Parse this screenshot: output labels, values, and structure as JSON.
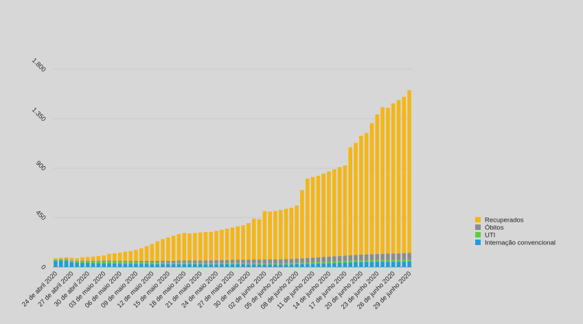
{
  "chart_data": {
    "type": "stacked-bar",
    "categories": [
      "24 de abril 2020",
      null,
      null,
      "27 de abril 2020",
      null,
      null,
      "30 de abril 2020",
      null,
      null,
      "03 de maio 2020",
      null,
      null,
      "06 de maio 2020",
      null,
      null,
      "09 de maio 2020",
      null,
      null,
      "12 de maio 2020",
      null,
      null,
      "15 de maio 2020",
      null,
      null,
      "18 de maio 2020",
      null,
      null,
      "21 de maio 2020",
      null,
      null,
      "24 de maio 2020",
      null,
      null,
      "27 de maio 2020",
      null,
      null,
      "30 de maio 2020",
      null,
      null,
      "02 de junho 2020",
      null,
      null,
      "05 de junho 2020",
      null,
      null,
      "08 de junho 2020",
      null,
      null,
      "11 de junho 2020",
      null,
      null,
      "14 de junho 2020",
      null,
      null,
      "17 de junho 2020",
      null,
      null,
      "20 de junho 2020",
      null,
      null,
      "23 de junho 2020",
      null,
      null,
      "26 de junho 2020",
      null,
      null,
      "29 de junho 2020"
    ],
    "series": [
      {
        "name": "Internação convencional",
        "color": "#1f9be2",
        "values": [
          55,
          60,
          58,
          45,
          40,
          40,
          38,
          36,
          35,
          35,
          35,
          33,
          32,
          30,
          30,
          30,
          28,
          28,
          27,
          26,
          25,
          25,
          25,
          26,
          27,
          26,
          25,
          25,
          24,
          24,
          24,
          25,
          25,
          26,
          26,
          25,
          24,
          24,
          23,
          22,
          22,
          22,
          22,
          23,
          24,
          25,
          26,
          28,
          30,
          32,
          33,
          35,
          36,
          38,
          40,
          42,
          44,
          45,
          46,
          46,
          47,
          47,
          48,
          48,
          48,
          49,
          50
        ]
      },
      {
        "name": "UTI",
        "color": "#5ccd3b",
        "values": [
          8,
          8,
          10,
          10,
          12,
          12,
          12,
          14,
          14,
          15,
          15,
          15,
          16,
          16,
          16,
          15,
          15,
          15,
          14,
          14,
          14,
          14,
          13,
          13,
          13,
          13,
          13,
          12,
          12,
          12,
          12,
          12,
          12,
          12,
          12,
          12,
          12,
          12,
          12,
          12,
          12,
          12,
          12,
          12,
          12,
          13,
          13,
          13,
          14,
          14,
          14,
          15,
          15,
          15,
          16,
          16,
          16,
          17,
          17,
          17,
          17,
          18,
          18,
          18,
          18,
          18,
          18
        ]
      },
      {
        "name": "Óbitos",
        "color": "#8c8c8c",
        "values": [
          5,
          5,
          6,
          6,
          6,
          7,
          7,
          8,
          8,
          9,
          9,
          10,
          10,
          11,
          12,
          12,
          13,
          14,
          15,
          16,
          17,
          18,
          19,
          20,
          21,
          22,
          22,
          23,
          24,
          25,
          26,
          27,
          27,
          28,
          29,
          30,
          31,
          32,
          33,
          34,
          35,
          35,
          36,
          37,
          38,
          39,
          40,
          41,
          42,
          43,
          44,
          45,
          46,
          47,
          48,
          49,
          50,
          51,
          52,
          53,
          54,
          55,
          56,
          57,
          58,
          59,
          60
        ]
      },
      {
        "name": "Recuperados",
        "color": "#f4b616",
        "values": [
          12,
          12,
          16,
          24,
          22,
          31,
          35,
          37,
          43,
          46,
          61,
          67,
          72,
          83,
          87,
          98,
          114,
          133,
          154,
          179,
          199,
          213,
          228,
          241,
          249,
          244,
          250,
          255,
          258,
          259,
          268,
          276,
          286,
          294,
          303,
          313,
          333,
          372,
          367,
          442,
          436,
          441,
          450,
          458,
          466,
          483,
          621,
          723,
          734,
          741,
          759,
          775,
          793,
          810,
          821,
          983,
          1020,
          1082,
          1105,
          1194,
          1272,
          1335,
          1328,
          1367,
          1396,
          1424,
          1482
        ]
      }
    ],
    "ylim": [
      0,
      1800
    ],
    "yticks": [
      0,
      450,
      900,
      {
        "value": 1350,
        "label": "1.350"
      },
      {
        "value": 1800,
        "label": "1.800"
      }
    ],
    "grid": true
  }
}
